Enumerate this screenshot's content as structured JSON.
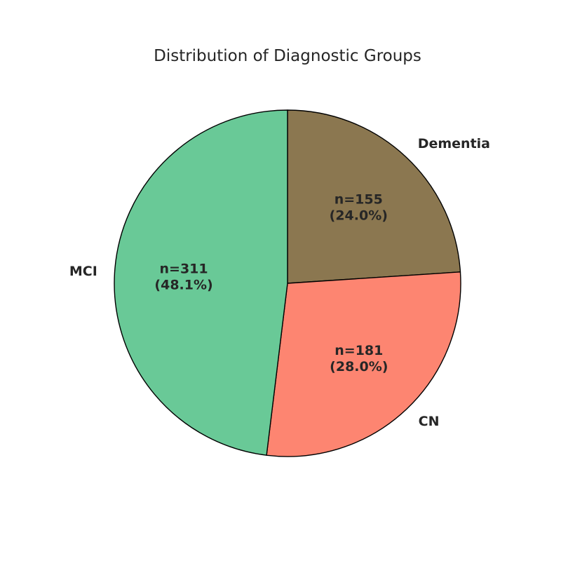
{
  "chart_data": {
    "type": "pie",
    "title": "Distribution of Diagnostic Groups",
    "slices": [
      {
        "label": "Dementia",
        "value": 155,
        "percent": 24.0,
        "count_text": "n=155",
        "percent_text": "(24.0%)",
        "color": "#8b7750"
      },
      {
        "label": "CN",
        "value": 181,
        "percent": 28.0,
        "count_text": "n=181",
        "percent_text": "(28.0%)",
        "color": "#fd8571"
      },
      {
        "label": "MCI",
        "value": 311,
        "percent": 48.1,
        "count_text": "n=311",
        "percent_text": "(48.1%)",
        "color": "#69c997"
      }
    ],
    "start_angle_deg": 90,
    "direction": "clockwise",
    "edge_color": "#000000"
  }
}
